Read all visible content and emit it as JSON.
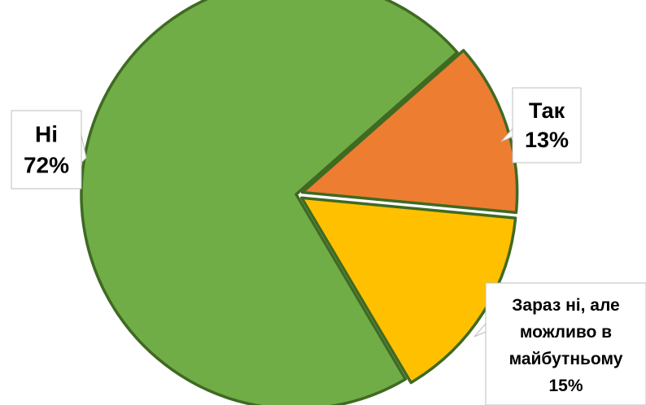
{
  "chart_data": {
    "type": "pie",
    "title": "",
    "labels": [
      "Так",
      "Зараз ні, але можливо в майбутньому",
      "Ні"
    ],
    "values": [
      13,
      15,
      72
    ],
    "unit": "%",
    "slices": [
      {
        "label": "Так",
        "value": 13,
        "color": "#ED7D31",
        "label_lines": [
          "Так",
          "13%"
        ]
      },
      {
        "label": "Зараз ні, але можливо в майбутньому",
        "value": 15,
        "color": "#FFC000",
        "label_lines": [
          "Зараз ні, але",
          "можливо в",
          "майбутньому",
          "15%"
        ]
      },
      {
        "label": "Ні",
        "value": 72,
        "color": "#70AD47",
        "label_lines": [
          "Ні",
          "72%"
        ]
      }
    ],
    "outline_color": "#3F6A22",
    "legend": "none"
  }
}
